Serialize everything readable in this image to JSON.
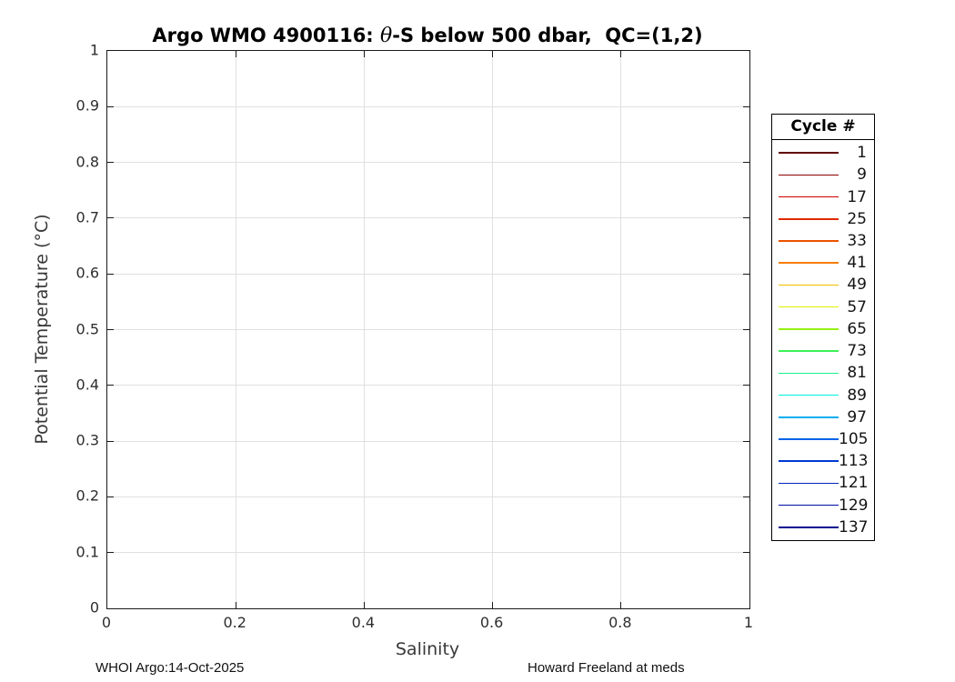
{
  "chart_data": {
    "type": "line",
    "title": "Argo WMO 4900116: θ-S below 500 dbar,  QC=(1,2)",
    "title_parts": {
      "prefix": "Argo WMO 4900116: ",
      "theta": "θ",
      "suffix": "-S below 500 dbar,  QC=(1,2)"
    },
    "xlabel": "Salinity",
    "ylabel": "Potential Temperature (°C)",
    "xlim": [
      0,
      1
    ],
    "ylim": [
      0,
      1
    ],
    "xticks": {
      "values": [
        0,
        0.2,
        0.4,
        0.6,
        0.8,
        1
      ],
      "labels": [
        "0",
        "0.2",
        "0.4",
        "0.6",
        "0.8",
        "1"
      ]
    },
    "yticks": {
      "values": [
        0,
        0.1,
        0.2,
        0.3,
        0.4,
        0.5,
        0.6,
        0.7,
        0.8,
        0.9,
        1
      ],
      "labels": [
        "0",
        "0.1",
        "0.2",
        "0.3",
        "0.4",
        "0.5",
        "0.6",
        "0.7",
        "0.8",
        "0.9",
        "1"
      ]
    },
    "grid": true,
    "grid_color": "#e0e0e0",
    "axis_color": "#1a1a1a",
    "legend": {
      "title": "Cycle #",
      "position": "outside-right"
    },
    "series": [
      {
        "name": "1",
        "color": "#600000",
        "x": [],
        "y": []
      },
      {
        "name": "9",
        "color": "#8C0000",
        "x": [],
        "y": []
      },
      {
        "name": "17",
        "color": "#D20000",
        "x": [],
        "y": []
      },
      {
        "name": "25",
        "color": "#E02A00",
        "x": [],
        "y": []
      },
      {
        "name": "33",
        "color": "#EC5200",
        "x": [],
        "y": []
      },
      {
        "name": "41",
        "color": "#F57E00",
        "x": [],
        "y": []
      },
      {
        "name": "49",
        "color": "#F0BE00",
        "x": [],
        "y": []
      },
      {
        "name": "57",
        "color": "#DCF000",
        "x": [],
        "y": []
      },
      {
        "name": "65",
        "color": "#96F014",
        "x": [],
        "y": []
      },
      {
        "name": "73",
        "color": "#3CF05A",
        "x": [],
        "y": []
      },
      {
        "name": "81",
        "color": "#1AF08C",
        "x": [],
        "y": []
      },
      {
        "name": "89",
        "color": "#00F0DC",
        "x": [],
        "y": []
      },
      {
        "name": "97",
        "color": "#00AEF0",
        "x": [],
        "y": []
      },
      {
        "name": "105",
        "color": "#0064E8",
        "x": [],
        "y": []
      },
      {
        "name": "113",
        "color": "#0038D2",
        "x": [],
        "y": []
      },
      {
        "name": "121",
        "color": "#0022BE",
        "x": [],
        "y": []
      },
      {
        "name": "129",
        "color": "#0010A4",
        "x": [],
        "y": []
      },
      {
        "name": "137",
        "color": "#000890",
        "x": [],
        "y": []
      }
    ],
    "notes": "Axes are empty; no data curves are drawn in the plot area."
  },
  "footer": {
    "left": "WHOI Argo:14-Oct-2025",
    "right": "Howard Freeland at meds"
  }
}
